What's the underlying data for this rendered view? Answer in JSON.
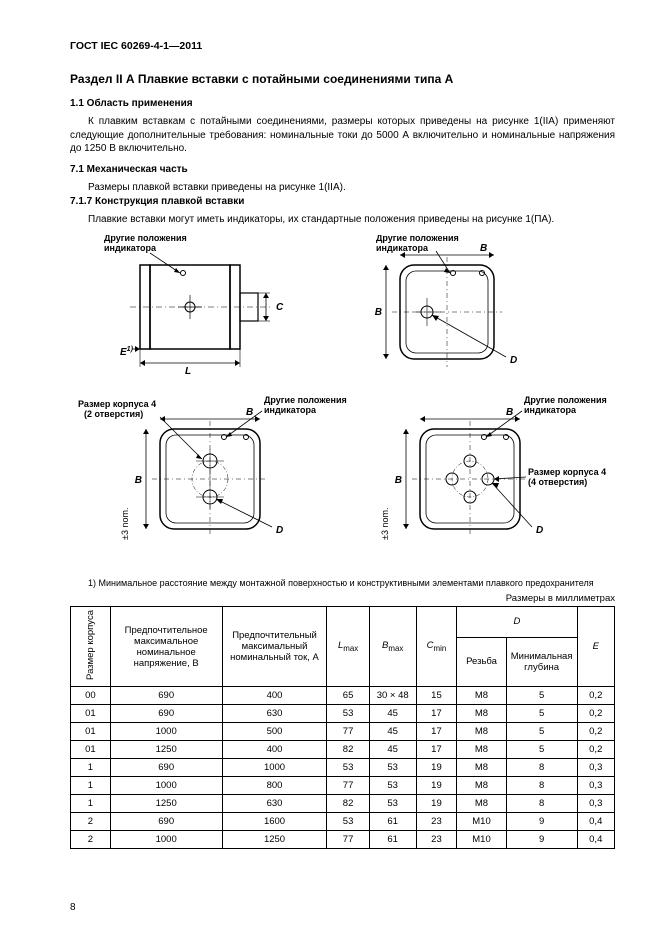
{
  "doc_code": "ГОСТ IEC 60269-4-1—2011",
  "section_title": "Раздел II А  Плавкие вставки c потайными соединениями типа А",
  "subtitle_1_1": "1.1  Область применения",
  "para_1": "К плавким вставкам c потайными соединениями, размеры которых приведены на рисунке 1(IIA) применяют следующие дополнительные требования: номинальные токи до 5000 А включительно и номинальные напряжения до 1250 В включительно.",
  "subtitle_7_1": "7.1  Механическая часть",
  "para_2": "Размеры плавкой вставки приведены на рисунке 1(IIA).",
  "subtitle_7_1_7": "7.1.7  Конструкция плавкой вставки",
  "para_3": "Плавкие вставки могут иметь индикаторы, их стандартные положения приведены на рисунке 1(ПА).",
  "figure": {
    "lbl_indicator": "Другие положения",
    "lbl_indicator2": "индикатора",
    "lbl_size4": "Размер корпуса 4",
    "lbl_2holes": "(2 отверстия)",
    "lbl_4holes": "(4 отверстия)",
    "lbl_nom": "±3 nom.",
    "dim_B": "B",
    "dim_C": "C",
    "dim_D": "D",
    "dim_L": "L",
    "dim_E": "E",
    "dim_E_sup": "1)"
  },
  "footnote": "1) Минимальное расстояние между монтажной поверхностью и конструктивными элементами плавкого предохранителя",
  "units_label": "Размеры в миллиметрах",
  "table": {
    "headers": {
      "size": "Размер корпуса",
      "voltage": "Предпочтительное максимальное номинальное напряжение, В",
      "current": "Предпочтительный максимальный номинальный ток, А",
      "Lmax": "L",
      "Lmax_sub": "max",
      "Bmax": "B",
      "Bmax_sub": "max",
      "Cmin": "C",
      "Cmin_sub": "min",
      "D": "D",
      "D_thread": "Резьба",
      "D_depth": "Минимальная глубина",
      "E": "E"
    },
    "rows": [
      {
        "size": "00",
        "v": "690",
        "a": "400",
        "l": "65",
        "b": "30 × 48",
        "c": "15",
        "th": "M8",
        "dep": "5",
        "e": "0,2"
      },
      {
        "size": "01",
        "v": "690",
        "a": "630",
        "l": "53",
        "b": "45",
        "c": "17",
        "th": "M8",
        "dep": "5",
        "e": "0,2"
      },
      {
        "size": "01",
        "v": "1000",
        "a": "500",
        "l": "77",
        "b": "45",
        "c": "17",
        "th": "M8",
        "dep": "5",
        "e": "0,2"
      },
      {
        "size": "01",
        "v": "1250",
        "a": "400",
        "l": "82",
        "b": "45",
        "c": "17",
        "th": "M8",
        "dep": "5",
        "e": "0,2"
      },
      {
        "size": "1",
        "v": "690",
        "a": "1000",
        "l": "53",
        "b": "53",
        "c": "19",
        "th": "M8",
        "dep": "8",
        "e": "0,3"
      },
      {
        "size": "1",
        "v": "1000",
        "a": "800",
        "l": "77",
        "b": "53",
        "c": "19",
        "th": "M8",
        "dep": "8",
        "e": "0,3"
      },
      {
        "size": "1",
        "v": "1250",
        "a": "630",
        "l": "82",
        "b": "53",
        "c": "19",
        "th": "M8",
        "dep": "8",
        "e": "0,3"
      },
      {
        "size": "2",
        "v": "690",
        "a": "1600",
        "l": "53",
        "b": "61",
        "c": "23",
        "th": "M10",
        "dep": "9",
        "e": "0,4"
      },
      {
        "size": "2",
        "v": "1000",
        "a": "1250",
        "l": "77",
        "b": "61",
        "c": "23",
        "th": "M10",
        "dep": "9",
        "e": "0,4"
      }
    ]
  },
  "page_number": "8"
}
